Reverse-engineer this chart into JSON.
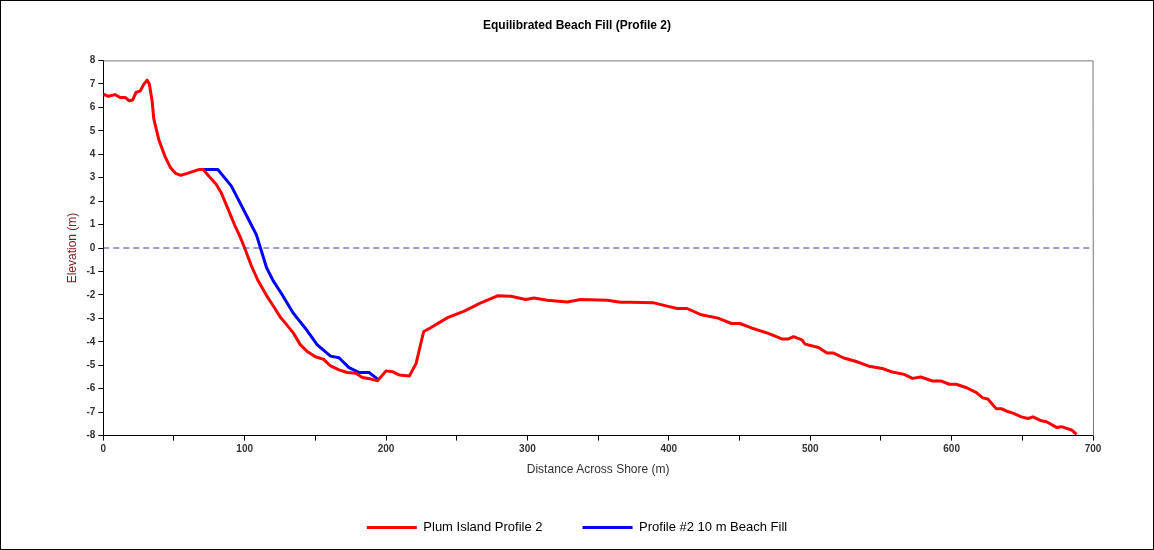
{
  "chart_data": {
    "type": "line",
    "title": "Equilibrated Beach Fill (Profile 2)",
    "xlabel": "Distance Across Shore (m)",
    "ylabel": "Elevation (m)",
    "xlim": [
      0,
      700
    ],
    "ylim": [
      -8,
      8
    ],
    "xticks": [
      0,
      {
        "value": 50,
        "label": null
      },
      100,
      {
        "value": 150,
        "label": null
      },
      200,
      {
        "value": 250,
        "label": null
      },
      300,
      {
        "value": 350,
        "label": null
      },
      400,
      {
        "value": 450,
        "label": null
      },
      500,
      {
        "value": 550,
        "label": null
      },
      600,
      {
        "value": 650,
        "label": null
      },
      700
    ],
    "yticks": [
      -8,
      -7,
      -6,
      -5,
      -4,
      -3,
      -2,
      -1,
      0,
      1,
      2,
      3,
      4,
      5,
      6,
      7,
      8
    ],
    "grid": false,
    "legend": "bottom",
    "marker": "none",
    "line_style": "solid",
    "ref_lines": [
      {
        "axis": "y",
        "value": 0,
        "color": "#3c3ca0",
        "line_style": "dashed"
      }
    ],
    "series": [
      {
        "name": "Plum Island Profile 2",
        "color": "#ff0000",
        "x": [
          0,
          3.6,
          8.3,
          11.9,
          15.5,
          18.3,
          20.7,
          23.1,
          26.2,
          28.6,
          31,
          32.6,
          34.5,
          35.7,
          39.3,
          43.6,
          47.6,
          51.2,
          54.8,
          59.5,
          64.3,
          67.9,
          70.7,
          75,
          79.8,
          83.3,
          88.1,
          92.9,
          96.4,
          100,
          104.8,
          109.5,
          115.5,
          121.4,
          125,
          129.8,
          134.5,
          139.3,
          144,
          150,
          155.9,
          160.7,
          166.7,
          172.6,
          178.6,
          183.3,
          189.3,
          194,
          200,
          204.8,
          209.5,
          216.5,
          221.2,
          226.6,
          231.8,
          243.5,
          255.3,
          267,
          278.8,
          288.2,
          298.8,
          304.7,
          314.1,
          328.2,
          337.6,
          356.5,
          365.9,
          372.9,
          389.4,
          398.8,
          405.9,
          412.9,
          423,
          434.8,
          444.3,
          450.2,
          458.5,
          470.4,
          479.9,
          484.6,
          488.2,
          494.1,
          496.4,
          505.9,
          511.8,
          516.6,
          523.7,
          532,
          541.5,
          551,
          558.1,
          566.4,
          572.3,
          578.2,
          586.5,
          592.4,
          598.3,
          603.1,
          610.2,
          617.3,
          622,
          625.6,
          631.5,
          635.1,
          638.6,
          643.4,
          649.3,
          654,
          657.6,
          663.5,
          667.1,
          674.2,
          677.7,
          684.8,
          688.4
        ],
        "values": [
          6.56,
          6.47,
          6.54,
          6.42,
          6.42,
          6.28,
          6.31,
          6.63,
          6.7,
          6.98,
          7.16,
          6.98,
          6.28,
          5.52,
          4.61,
          3.91,
          3.42,
          3.18,
          3.1,
          3.18,
          3.28,
          3.35,
          3.35,
          3.04,
          2.72,
          2.37,
          1.68,
          0.98,
          0.53,
          0,
          -0.77,
          -1.4,
          -2.03,
          -2.58,
          -2.93,
          -3.28,
          -3.63,
          -4.12,
          -4.4,
          -4.64,
          -4.75,
          -5.03,
          -5.2,
          -5.31,
          -5.34,
          -5.52,
          -5.59,
          -5.66,
          -5.24,
          -5.28,
          -5.42,
          -5.46,
          -4.93,
          -3.56,
          -3.39,
          -2.97,
          -2.69,
          -2.34,
          -2.04,
          -2.06,
          -2.2,
          -2.13,
          -2.23,
          -2.3,
          -2.2,
          -2.23,
          -2.31,
          -2.31,
          -2.34,
          -2.48,
          -2.58,
          -2.58,
          -2.85,
          -2.99,
          -3.22,
          -3.22,
          -3.41,
          -3.64,
          -3.88,
          -3.88,
          -3.78,
          -3.92,
          -4.1,
          -4.24,
          -4.48,
          -4.48,
          -4.69,
          -4.83,
          -5.04,
          -5.14,
          -5.29,
          -5.39,
          -5.56,
          -5.5,
          -5.67,
          -5.67,
          -5.81,
          -5.81,
          -5.95,
          -6.16,
          -6.39,
          -6.44,
          -6.85,
          -6.85,
          -6.95,
          -7.04,
          -7.2,
          -7.27,
          -7.2,
          -7.37,
          -7.41,
          -7.65,
          -7.62,
          -7.76,
          -7.95
        ]
      },
      {
        "name": "Profile #2 10 m Beach Fill",
        "color": "#0000ff",
        "x": [
          70.7,
          81,
          85.7,
          90.5,
          96.4,
          102.4,
          108.3,
          111.9,
          115.5,
          120.2,
          126.2,
          134.5,
          142.9,
          151.2,
          160.7,
          166.7,
          173.8,
          181,
          188,
          194
        ],
        "values": [
          3.35,
          3.35,
          3,
          2.65,
          1.96,
          1.26,
          0.56,
          -0.14,
          -0.84,
          -1.4,
          -1.96,
          -2.79,
          -3.42,
          -4.12,
          -4.61,
          -4.68,
          -5.1,
          -5.31,
          -5.31,
          -5.59
        ]
      }
    ]
  }
}
